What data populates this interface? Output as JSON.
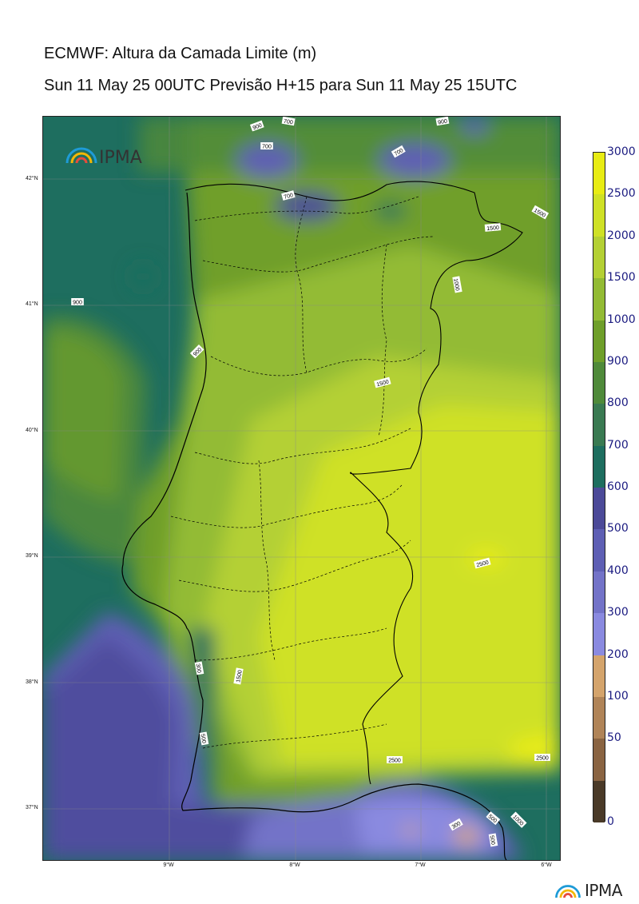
{
  "header": {
    "title": "ECMWF: Altura da Camada Limite (m)",
    "subtitle": "Sun 11 May 25 00UTC Previsão H+15 para Sun 11 May 25 15UTC"
  },
  "map": {
    "lat_labels": [
      "42°N",
      "41°N",
      "40°N",
      "39°N",
      "38°N",
      "37°N"
    ],
    "lon_labels": [
      "9°W",
      "8°W",
      "7°W",
      "6°W"
    ],
    "contour_labels": [
      "900",
      "700",
      "700",
      "900",
      "700",
      "700",
      "1500",
      "1500",
      "1000",
      "900",
      "900",
      "1500",
      "2500",
      "300",
      "500",
      "1500",
      "2500",
      "2500",
      "300",
      "500",
      "1000",
      "500"
    ],
    "region": "Portugal continental"
  },
  "colorbar": {
    "levels": [
      "3000",
      "2500",
      "2000",
      "1500",
      "1000",
      "900",
      "800",
      "700",
      "600",
      "500",
      "400",
      "300",
      "200",
      "100",
      "50",
      "0"
    ],
    "colors": [
      "#e8ec14",
      "#cfe126",
      "#b4d034",
      "#93bb34",
      "#6f9f2a",
      "#4f8a3a",
      "#3a7a52",
      "#1e6e5f",
      "#4c4a98",
      "#5e5fb4",
      "#7373c8",
      "#8a8ae0",
      "#d4a46c",
      "#b08458",
      "#8a6442",
      "#4a3a28"
    ],
    "units": "m"
  },
  "branding": {
    "logo_text": "IPMA"
  }
}
